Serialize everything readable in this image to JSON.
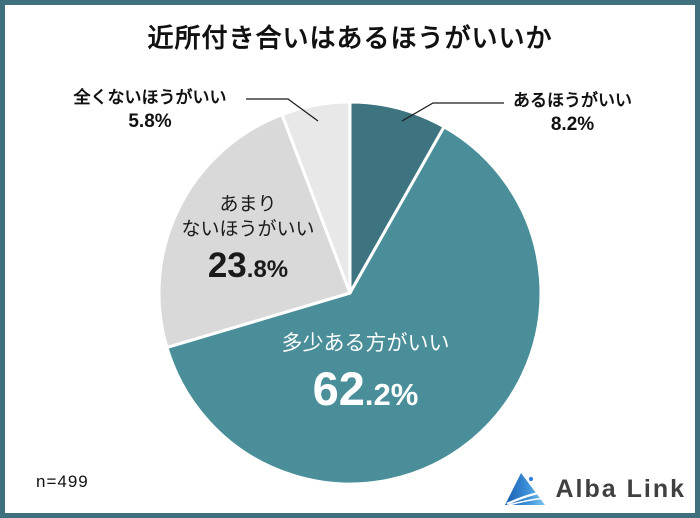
{
  "page": {
    "title": "近所付き合いはあるほうがいいか",
    "sample_label": "n=499",
    "brand_name": "Alba Link"
  },
  "chart_data": {
    "type": "pie",
    "title": "近所付き合いはあるほうがいいか",
    "sample_size": 499,
    "unit": "%",
    "start_angle_deg": 0,
    "direction": "clockwise",
    "slices": [
      {
        "label": "あるほうがいい",
        "value": 8.2,
        "color": "#3d7480",
        "label_placement": "outside-top-right"
      },
      {
        "label": "多少ある方がいい",
        "value": 62.2,
        "color": "#4a8e99",
        "label_placement": "inside-bottom"
      },
      {
        "label": "あまりないほうがいい",
        "value": 23.8,
        "color": "#d9d9d9",
        "label_placement": "inside-left"
      },
      {
        "label": "全くないほうがいい",
        "value": 5.8,
        "color": "#e8e8e8",
        "label_placement": "outside-top-left"
      }
    ],
    "legend": "none",
    "slice_gap_color": "#ffffff"
  },
  "labels": {
    "mattaku": {
      "text": "全くないほうがいい",
      "pct": "5.8%"
    },
    "aru": {
      "text": "あるほうがいい",
      "pct": "8.2%"
    },
    "amari": {
      "line1": "あまり",
      "line2": "ないほうがいい",
      "pct_int": "23",
      "pct_frac": ".8%"
    },
    "tasho": {
      "text": "多少ある方がいい",
      "pct_int": "62",
      "pct_frac": ".2%"
    }
  },
  "colors": {
    "frame_border": "#3e707e",
    "title_text": "#111111",
    "leader_line": "#1a1a1a",
    "inside_light_text": "#ffffff",
    "inside_dark_text": "#1a1a1a",
    "logo_blue_dark": "#1a5cb0",
    "logo_blue_mid": "#3b8fd8",
    "logo_blue_light": "#7cc4ed",
    "brand_text": "#404040"
  }
}
